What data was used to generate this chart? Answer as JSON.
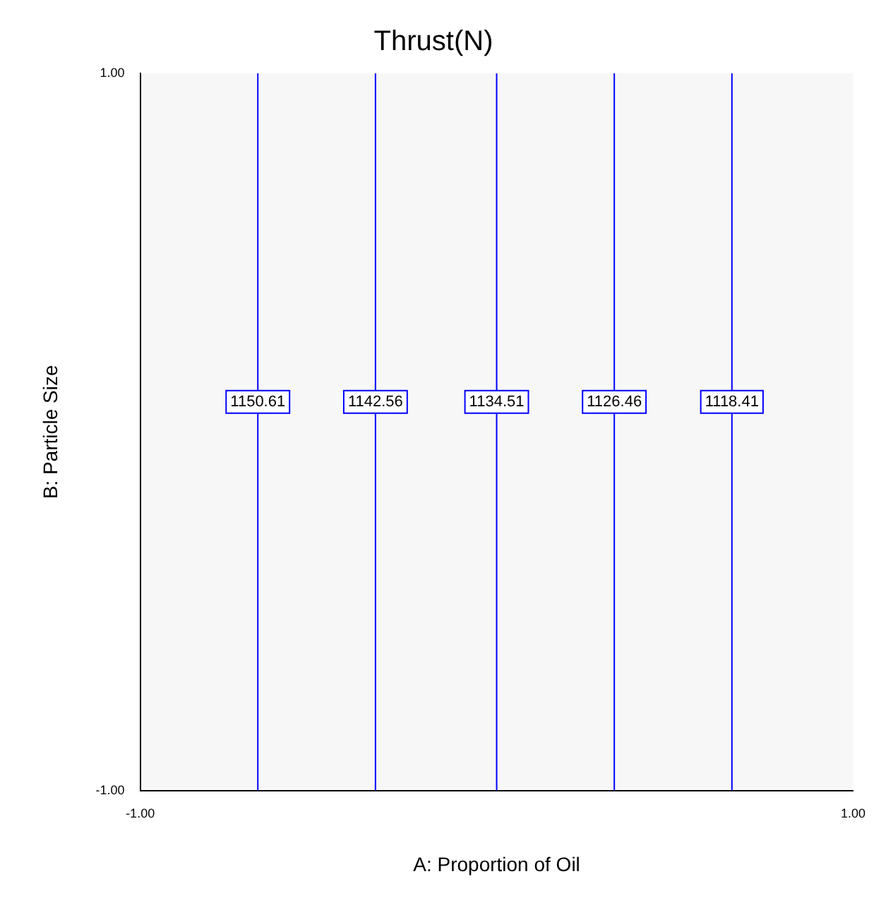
{
  "chart_data": {
    "type": "line",
    "title": "Thrust(N)",
    "xlabel": "A: Proportion of Oil",
    "ylabel": "B: Particle Size",
    "xlim": [
      -1,
      1
    ],
    "ylim": [
      -1,
      1
    ],
    "xticks": [
      {
        "value": -1,
        "label": "-1.00"
      },
      {
        "value": 1,
        "label": "1.00"
      }
    ],
    "yticks": [
      {
        "value": -1,
        "label": "-1.00"
      },
      {
        "value": 1,
        "label": "1.00"
      }
    ],
    "series": [
      {
        "name": "1150.61",
        "color": "#0000ff",
        "x": [
          -0.67,
          -0.67
        ],
        "values": [
          -1,
          1
        ]
      },
      {
        "name": "1142.56",
        "color": "#0000ff",
        "x": [
          -0.34,
          -0.34
        ],
        "values": [
          -1,
          1
        ]
      },
      {
        "name": "1134.51",
        "color": "#0000ff",
        "x": [
          0,
          0
        ],
        "values": [
          -1,
          1
        ]
      },
      {
        "name": "1126.46",
        "color": "#0000ff",
        "x": [
          0.33,
          0.33
        ],
        "values": [
          -1,
          1
        ]
      },
      {
        "name": "1118.41",
        "color": "#0000ff",
        "x": [
          0.66,
          0.66
        ],
        "values": [
          -1,
          1
        ]
      }
    ],
    "marker": "none",
    "line_style": "solid",
    "grid": false,
    "legend": false
  }
}
